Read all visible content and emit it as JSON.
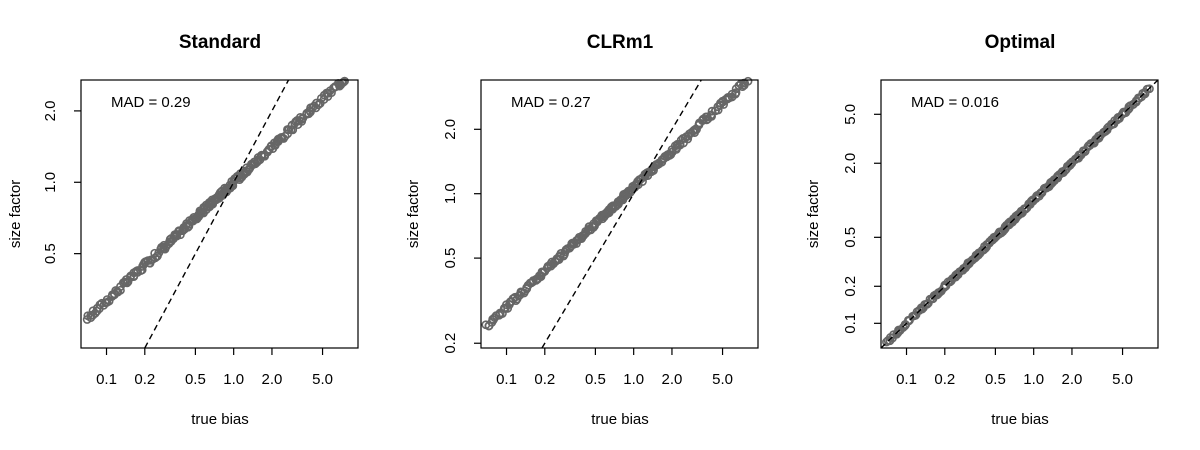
{
  "chart_data": [
    {
      "type": "scatter",
      "title": "Standard",
      "xlabel": "true bias",
      "ylabel": "size factor",
      "annotation": "MAD = 0.29",
      "x_scale": "log",
      "y_scale": "log",
      "xlim": [
        0.063,
        9.5
      ],
      "ylim": [
        0.2,
        2.7
      ],
      "x_ticks": [
        0.1,
        0.2,
        0.5,
        1.0,
        2.0,
        5.0
      ],
      "x_tick_labels": [
        "0.1",
        "0.2",
        "0.5",
        "1.0",
        "2.0",
        "5.0"
      ],
      "y_ticks": [
        0.5,
        1.0,
        2.0
      ],
      "y_tick_labels": [
        "0.5",
        "1.0",
        "2.0"
      ],
      "reference_line": {
        "intercept_log": 0,
        "slope": 1,
        "style": "dashed"
      },
      "fit": {
        "slope": 0.5,
        "intercept": 0.0
      },
      "range": [
        0.07,
        8.0
      ],
      "point_color": "#666666"
    },
    {
      "type": "scatter",
      "title": "CLRm1",
      "xlabel": "true bias",
      "ylabel": "size factor",
      "annotation": "MAD = 0.27",
      "x_scale": "log",
      "y_scale": "log",
      "xlim": [
        0.063,
        9.5
      ],
      "ylim": [
        0.19,
        3.4
      ],
      "x_ticks": [
        0.1,
        0.2,
        0.5,
        1.0,
        2.0,
        5.0
      ],
      "x_tick_labels": [
        "0.1",
        "0.2",
        "0.5",
        "1.0",
        "2.0",
        "5.0"
      ],
      "y_ticks": [
        0.2,
        0.5,
        1.0,
        2.0
      ],
      "y_tick_labels": [
        "0.2",
        "0.5",
        "1.0",
        "2.0"
      ],
      "reference_line": {
        "intercept_log": 0,
        "slope": 1,
        "style": "dashed"
      },
      "fit": {
        "slope": 0.56,
        "intercept": 0.03
      },
      "range": [
        0.07,
        8.0
      ],
      "point_color": "#666666"
    },
    {
      "type": "scatter",
      "title": "Optimal",
      "xlabel": "true bias",
      "ylabel": "size factor",
      "annotation": "MAD = 0.016",
      "x_scale": "log",
      "y_scale": "log",
      "xlim": [
        0.063,
        9.5
      ],
      "ylim": [
        0.063,
        9.5
      ],
      "x_ticks": [
        0.1,
        0.2,
        0.5,
        1.0,
        2.0,
        5.0
      ],
      "x_tick_labels": [
        "0.1",
        "0.2",
        "0.5",
        "1.0",
        "2.0",
        "5.0"
      ],
      "y_ticks": [
        0.1,
        0.2,
        0.5,
        2.0,
        5.0
      ],
      "y_tick_labels": [
        "0.1",
        "0.2",
        "0.5",
        "2.0",
        "5.0"
      ],
      "reference_line": {
        "intercept_log": 0,
        "slope": 1,
        "style": "dashed"
      },
      "fit": {
        "slope": 1.0,
        "intercept": 0.0
      },
      "range": [
        0.07,
        8.0
      ],
      "point_color": "#666666"
    }
  ]
}
